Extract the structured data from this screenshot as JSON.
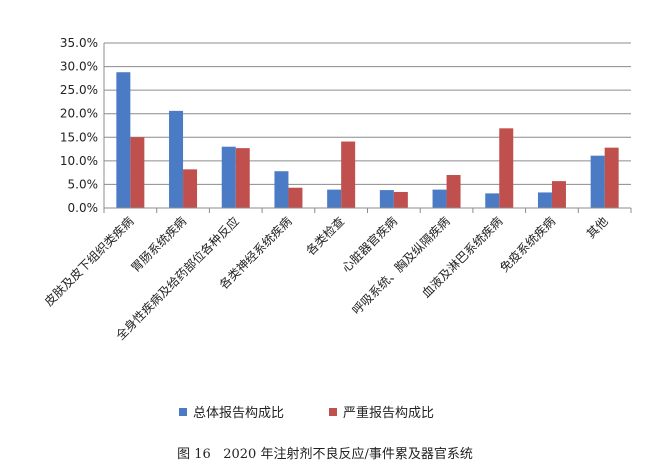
{
  "chart_data": {
    "type": "bar",
    "categories": [
      "皮肤及皮下组织类疾病",
      "胃肠系统疾病",
      "全身性疾病及给药部位各种反应",
      "各类神经系统疾病",
      "各类检查",
      "心脏器官疾病",
      "呼吸系统、胸及纵隔疾病",
      "血液及淋巴系统疾病",
      "免疫系统疾病",
      "其他"
    ],
    "series": [
      {
        "name": "总体报告构成比",
        "color": "#4a7bc4",
        "values": [
          28.8,
          20.6,
          13.0,
          7.8,
          3.9,
          3.8,
          3.9,
          3.1,
          3.3,
          11.1
        ]
      },
      {
        "name": "严重报告构成比",
        "color": "#c0504d",
        "values": [
          15.0,
          8.2,
          12.7,
          4.3,
          14.1,
          3.4,
          7.0,
          16.9,
          5.7,
          12.8
        ]
      }
    ],
    "yticks": [
      "0.0%",
      "5.0%",
      "10.0%",
      "15.0%",
      "20.0%",
      "25.0%",
      "30.0%",
      "35.0%"
    ],
    "ylim": [
      0,
      35
    ],
    "grid": true,
    "legend_position": "bottom",
    "caption": "图 16   2020 年注射剂不良反应/事件累及器官系统"
  }
}
